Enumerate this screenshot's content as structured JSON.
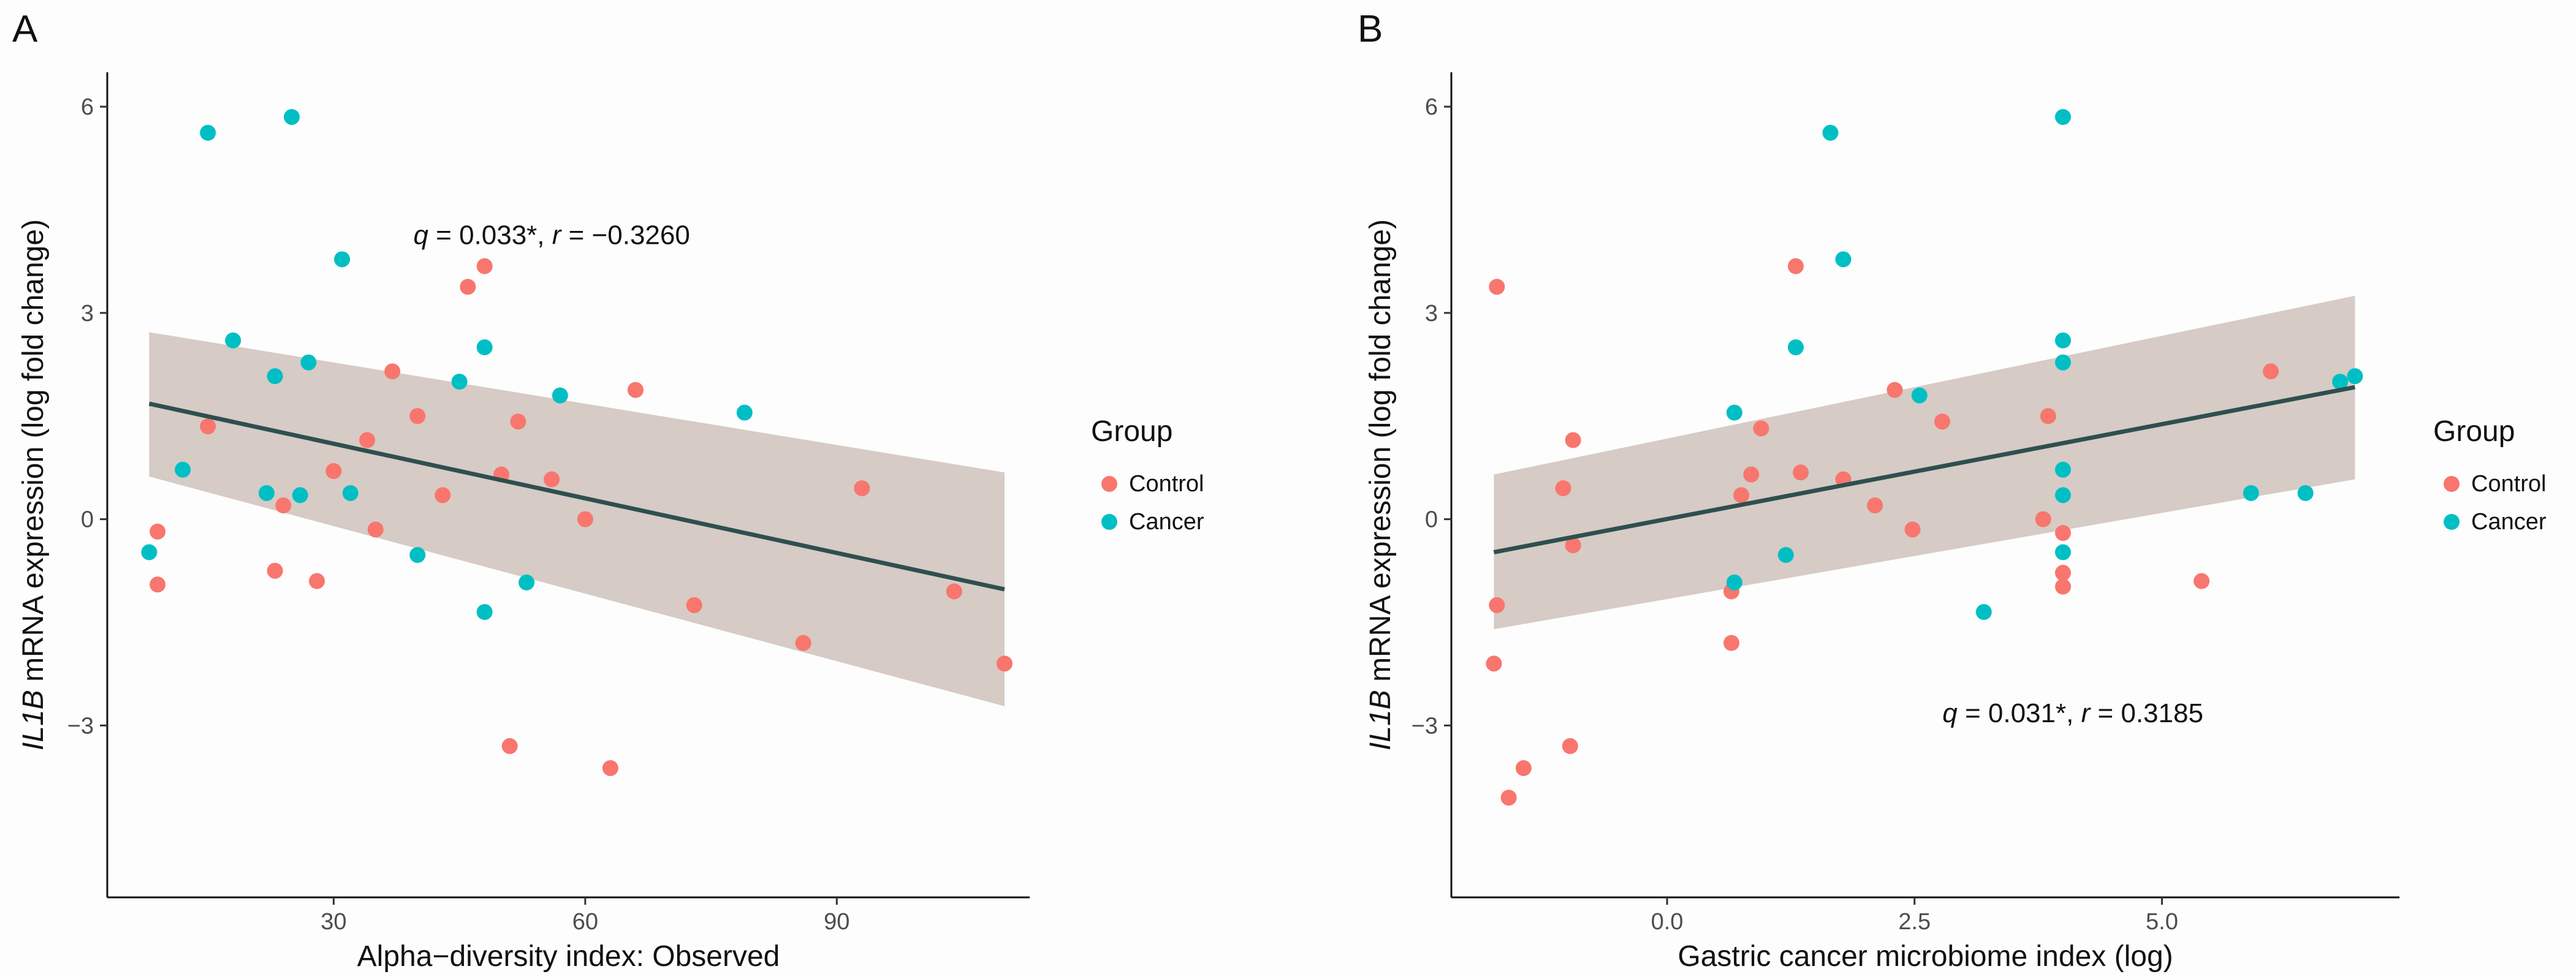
{
  "chart_data": [
    {
      "type": "scatter",
      "panel_label": "A",
      "xlabel": "Alpha−diversity index: Observed",
      "ylabel_italic": "IL1B",
      "ylabel_rest": " mRNA expression (log fold change)",
      "xlim": [
        3,
        113
      ],
      "ylim": [
        -5.5,
        6.5
      ],
      "xticks": [
        30,
        60,
        90
      ],
      "xtick_labels": [
        "30",
        "60",
        "90"
      ],
      "yticks": [
        -3,
        0,
        3,
        6
      ],
      "ytick_labels": [
        "−3",
        "0",
        "3",
        "6"
      ],
      "annotation": {
        "q_label": "q",
        "q_value": " = 0.033*, ",
        "r_label": "r",
        "r_value": " = −0.3260",
        "pos": [
          56,
          4.0
        ]
      },
      "fit": {
        "x": [
          8,
          110
        ],
        "y": [
          1.68,
          -1.02
        ],
        "lower": [
          0.62,
          -2.72
        ],
        "upper": [
          2.72,
          0.68
        ]
      },
      "legend": {
        "title": "Group",
        "entries": [
          "Control",
          "Cancer"
        ]
      },
      "colors": {
        "Control": "#f8766d",
        "Cancer": "#00bfc4",
        "fit": "#2f4f4f",
        "band": "#c8bab2"
      },
      "series": [
        {
          "name": "Control",
          "points": [
            [
              9,
              -0.95
            ],
            [
              9,
              -0.18
            ],
            [
              15,
              1.35
            ],
            [
              23,
              -0.75
            ],
            [
              24,
              0.2
            ],
            [
              28,
              -0.9
            ],
            [
              30,
              0.7
            ],
            [
              34,
              1.15
            ],
            [
              35,
              -0.15
            ],
            [
              37,
              2.15
            ],
            [
              40,
              1.5
            ],
            [
              43,
              0.35
            ],
            [
              46,
              3.38
            ],
            [
              48,
              3.68
            ],
            [
              50,
              0.65
            ],
            [
              51,
              -3.3
            ],
            [
              52,
              1.42
            ],
            [
              56,
              0.58
            ],
            [
              60,
              0.0
            ],
            [
              63,
              -3.62
            ],
            [
              66,
              1.88
            ],
            [
              73,
              -1.25
            ],
            [
              86,
              -1.8
            ],
            [
              93,
              0.45
            ],
            [
              104,
              -1.05
            ],
            [
              110,
              -2.1
            ]
          ]
        },
        {
          "name": "Cancer",
          "points": [
            [
              8,
              -0.48
            ],
            [
              12,
              0.72
            ],
            [
              15,
              5.62
            ],
            [
              18,
              2.6
            ],
            [
              22,
              0.38
            ],
            [
              23,
              2.08
            ],
            [
              25,
              5.85
            ],
            [
              26,
              0.35
            ],
            [
              27,
              2.28
            ],
            [
              31,
              3.78
            ],
            [
              32,
              0.38
            ],
            [
              40,
              -0.52
            ],
            [
              45,
              2.0
            ],
            [
              48,
              2.5
            ],
            [
              48,
              -1.35
            ],
            [
              53,
              -0.92
            ],
            [
              57,
              1.8
            ],
            [
              79,
              1.55
            ]
          ]
        }
      ]
    },
    {
      "type": "scatter",
      "panel_label": "B",
      "xlabel": "Gastric cancer microbiome index (log)",
      "ylabel_italic": "IL1B",
      "ylabel_rest": " mRNA expression (log fold change)",
      "xlim": [
        -2.18,
        7.4
      ],
      "ylim": [
        -5.5,
        6.5
      ],
      "xticks": [
        0.0,
        2.5,
        5.0
      ],
      "xtick_labels": [
        "0.0",
        "2.5",
        "5.0"
      ],
      "yticks": [
        -3,
        0,
        3,
        6
      ],
      "ytick_labels": [
        "−3",
        "0",
        "3",
        "6"
      ],
      "annotation": {
        "q_label": "q",
        "q_value": " = 0.031*, ",
        "r_label": "r",
        "r_value": " = 0.3185",
        "pos": [
          4.1,
          -2.95
        ]
      },
      "fit": {
        "x": [
          -1.75,
          6.95
        ],
        "y": [
          -0.48,
          1.92
        ],
        "lower": [
          -1.6,
          0.58
        ],
        "upper": [
          0.65,
          3.25
        ]
      },
      "legend": {
        "title": "Group",
        "entries": [
          "Control",
          "Cancer"
        ]
      },
      "colors": {
        "Control": "#f8766d",
        "Cancer": "#00bfc4",
        "fit": "#2f4f4f",
        "band": "#c8bab2"
      },
      "series": [
        {
          "name": "Control",
          "points": [
            [
              -1.72,
              3.38
            ],
            [
              -1.72,
              -1.25
            ],
            [
              -1.75,
              -2.1
            ],
            [
              -1.6,
              -4.05
            ],
            [
              -1.45,
              -3.62
            ],
            [
              -1.05,
              0.45
            ],
            [
              -0.95,
              1.15
            ],
            [
              -0.95,
              -0.38
            ],
            [
              -0.98,
              -3.3
            ],
            [
              0.65,
              -1.05
            ],
            [
              0.65,
              -1.8
            ],
            [
              0.75,
              0.35
            ],
            [
              0.85,
              0.65
            ],
            [
              0.95,
              1.32
            ],
            [
              1.3,
              3.68
            ],
            [
              1.35,
              0.68
            ],
            [
              1.78,
              0.58
            ],
            [
              2.1,
              0.2
            ],
            [
              2.3,
              1.88
            ],
            [
              2.48,
              -0.15
            ],
            [
              2.78,
              1.42
            ],
            [
              3.8,
              0.0
            ],
            [
              3.85,
              1.5
            ],
            [
              4.0,
              -0.2
            ],
            [
              4.0,
              -0.78
            ],
            [
              4.0,
              -0.98
            ],
            [
              5.4,
              -0.9
            ],
            [
              6.1,
              2.15
            ]
          ]
        },
        {
          "name": "Cancer",
          "points": [
            [
              0.68,
              1.55
            ],
            [
              0.68,
              -0.92
            ],
            [
              1.2,
              -0.52
            ],
            [
              1.3,
              2.5
            ],
            [
              1.65,
              5.62
            ],
            [
              1.78,
              3.78
            ],
            [
              2.55,
              1.8
            ],
            [
              3.2,
              -1.35
            ],
            [
              4.0,
              5.85
            ],
            [
              4.0,
              2.6
            ],
            [
              4.0,
              2.28
            ],
            [
              4.0,
              0.72
            ],
            [
              4.0,
              0.35
            ],
            [
              4.0,
              -0.48
            ],
            [
              5.9,
              0.38
            ],
            [
              6.45,
              0.38
            ],
            [
              6.8,
              2.0
            ],
            [
              6.95,
              2.08
            ]
          ]
        }
      ]
    }
  ]
}
